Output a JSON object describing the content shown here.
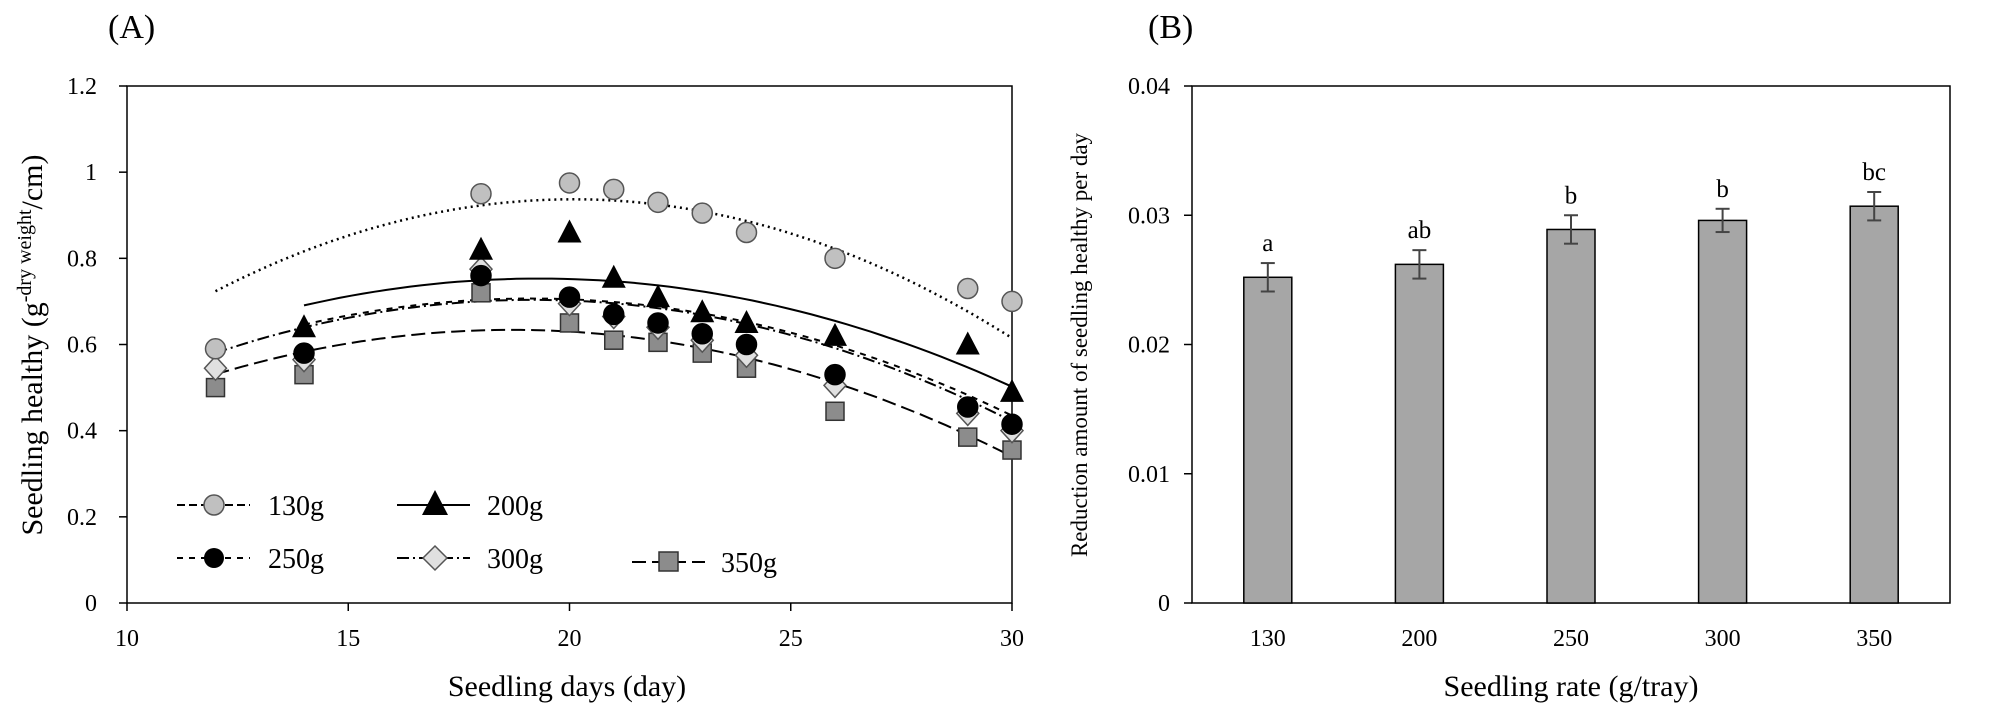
{
  "chart_data": [
    {
      "type": "scatter",
      "panel_label": "(A)",
      "title": "",
      "xlabel": "Seedling days (day)",
      "ylabel_main": "Seedling healthy (g",
      "ylabel_sup": "-dry weight",
      "ylabel_end": "/cm)",
      "xlim": [
        10,
        30
      ],
      "ylim": [
        0,
        1.2
      ],
      "xticks": [
        10,
        15,
        20,
        25,
        30
      ],
      "xtick_labels": [
        "10",
        "15",
        "20",
        "25",
        "30"
      ],
      "yticks": [
        0,
        0.2,
        0.4,
        0.6,
        0.8,
        1.0,
        1.2
      ],
      "ytick_labels": [
        "0",
        "0.2",
        "0.4",
        "0.6",
        "0.8",
        "1",
        "1.2"
      ],
      "grid": false,
      "legend_placement": "bottom-left",
      "x": [
        12,
        14,
        18,
        20,
        21,
        22,
        23,
        24,
        26,
        29,
        30
      ],
      "series": [
        {
          "name": "130g",
          "marker": "circle",
          "fill": "#c0c0c0",
          "trend": "dotted",
          "trend_quadratic": [
            -0.00327,
            0.1313,
            -0.381
          ],
          "values": [
            0.59,
            null,
            0.95,
            0.975,
            0.96,
            0.93,
            0.905,
            0.86,
            0.8,
            0.73,
            0.7
          ]
        },
        {
          "name": "200g",
          "marker": "triangle",
          "fill": "#000000",
          "trend": "solid",
          "trend_quadratic": [
            -0.0022,
            0.085,
            -0.068
          ],
          "values": [
            null,
            0.64,
            0.82,
            0.86,
            0.755,
            0.71,
            0.675,
            0.65,
            0.62,
            0.6,
            0.49
          ]
        },
        {
          "name": "250g",
          "marker": "circle",
          "fill": "#000000",
          "trend": "dashed",
          "trend_quadratic": [
            -0.0023,
            0.088,
            -0.135
          ],
          "values": [
            null,
            0.58,
            0.76,
            0.71,
            0.67,
            0.65,
            0.625,
            0.6,
            0.53,
            0.455,
            0.415
          ]
        },
        {
          "name": "300g",
          "marker": "diamond",
          "fill": "#e0e0e0",
          "trend": "dash-dot",
          "trend_quadratic": [
            -0.0024,
            0.092,
            -0.178
          ],
          "values": [
            0.545,
            0.565,
            0.775,
            0.695,
            0.665,
            0.64,
            0.61,
            0.575,
            0.505,
            0.44,
            0.4
          ]
        },
        {
          "name": "350g",
          "marker": "square",
          "fill": "#8c8c8c",
          "trend": "long-dash",
          "trend_quadratic": [
            -0.0023,
            0.086,
            -0.17
          ],
          "values": [
            0.5,
            0.53,
            0.72,
            0.65,
            0.61,
            0.605,
            0.58,
            0.545,
            0.445,
            0.385,
            0.355
          ]
        }
      ]
    },
    {
      "type": "bar",
      "panel_label": "(B)",
      "title": "",
      "xlabel": "Seedling rate (g/tray)",
      "ylabel": "Reduction amount of seedling healthy per day",
      "categories": [
        "130",
        "200",
        "250",
        "300",
        "350"
      ],
      "values": [
        0.0252,
        0.0262,
        0.0289,
        0.0296,
        0.0307
      ],
      "errors": [
        0.0011,
        0.0011,
        0.0011,
        0.0009,
        0.0011
      ],
      "significance_labels": [
        "a",
        "ab",
        "b",
        "b",
        "bc"
      ],
      "ylim": [
        0,
        0.04
      ],
      "yticks": [
        0,
        0.01,
        0.02,
        0.03,
        0.04
      ],
      "ytick_labels": [
        "0",
        "0.01",
        "0.02",
        "0.03",
        "0.04"
      ],
      "grid": false,
      "bar_color": "#a6a6a6"
    }
  ]
}
